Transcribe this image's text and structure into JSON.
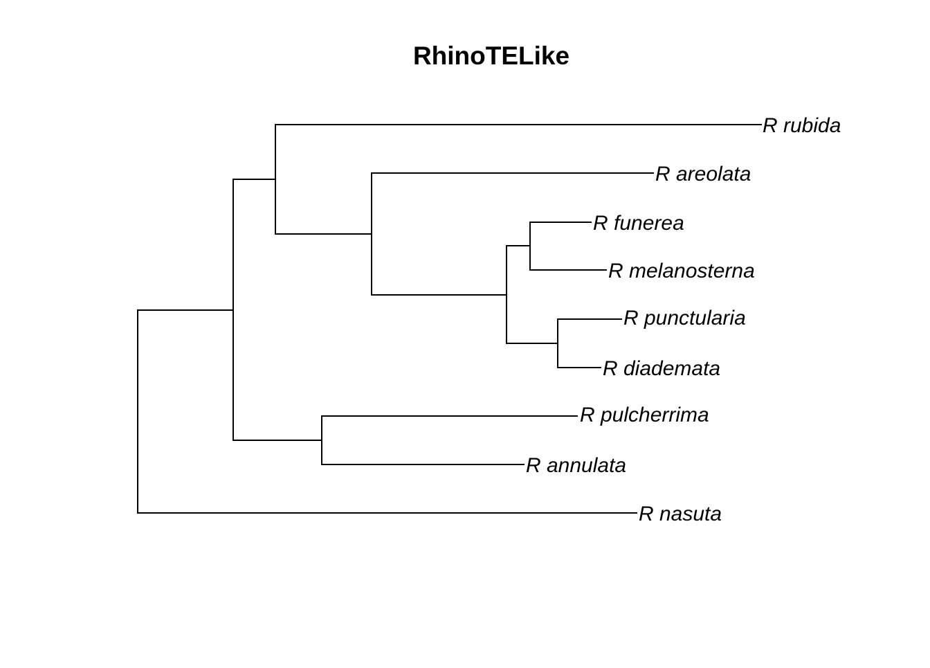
{
  "title": "RhinoTELike",
  "tips": [
    "R rubida",
    "R areolata",
    "R funerea",
    "R melanosterna",
    "R punctularia",
    "R diademata",
    "R pulcherrima",
    "R annulata",
    "R nasuta"
  ],
  "colors": {
    "line": "#000000",
    "text": "#000000",
    "background": "#ffffff"
  }
}
